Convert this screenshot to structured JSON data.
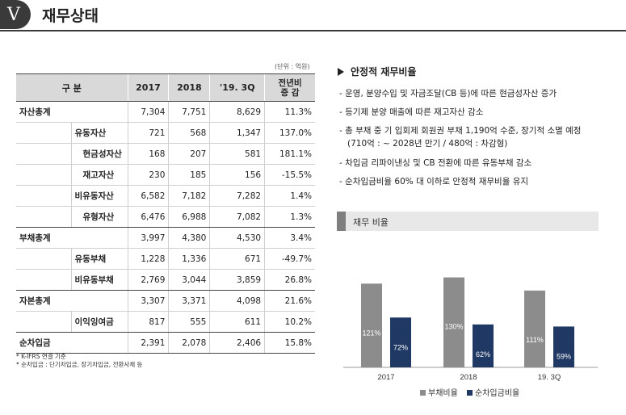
{
  "header": {
    "badge": "V",
    "title": "재무상태"
  },
  "table": {
    "unit": "(단위 : 억원)",
    "headers": [
      "구  분",
      "2017",
      "2018",
      "'19. 3Q",
      "전년비\n증  감"
    ],
    "rows": [
      {
        "level": 0,
        "label": "자산총계",
        "v": [
          "7,304",
          "7,751",
          "8,629",
          "11.3%"
        ]
      },
      {
        "level": 1,
        "label": "유동자산",
        "v": [
          "721",
          "568",
          "1,347",
          "137.0%"
        ]
      },
      {
        "level": 2,
        "label": "현금성자산",
        "v": [
          "168",
          "207",
          "581",
          "181.1%"
        ]
      },
      {
        "level": 2,
        "label": "재고자산",
        "v": [
          "230",
          "185",
          "156",
          "-15.5%"
        ]
      },
      {
        "level": 1,
        "label": "비유동자산",
        "v": [
          "6,582",
          "7,182",
          "7,282",
          "1.4%"
        ]
      },
      {
        "level": 2,
        "label": "유형자산",
        "v": [
          "6,476",
          "6,988",
          "7,082",
          "1.3%"
        ]
      },
      {
        "level": 0,
        "label": "부채총계",
        "v": [
          "3,997",
          "4,380",
          "4,530",
          "3.4%"
        ]
      },
      {
        "level": 1,
        "label": "유동부채",
        "v": [
          "1,228",
          "1,336",
          "671",
          "-49.7%"
        ]
      },
      {
        "level": 1,
        "label": "비유동부채",
        "v": [
          "2,769",
          "3,044",
          "3,859",
          "26.8%"
        ]
      },
      {
        "level": 0,
        "label": "자본총계",
        "v": [
          "3,307",
          "3,371",
          "4,098",
          "21.6%"
        ]
      },
      {
        "level": 1,
        "label": "이익잉여금",
        "v": [
          "817",
          "555",
          "611",
          "10.2%"
        ]
      },
      {
        "level": 0,
        "label": "순차입금",
        "v": [
          "2,391",
          "2,078",
          "2,406",
          "15.8%"
        ]
      }
    ],
    "notes": [
      "* K-IFRS 연결 기준",
      "* 순차입금 : 단기차입금, 장기차입금, 전환사채 등"
    ]
  },
  "section": {
    "title": "안정적 재무비율",
    "bullets": [
      "- 운영, 분양수입 및 자금조달(CB 등)에 따른 현금성자산 증가",
      "- 등기제 분양 매출에 따른 재고자산 감소",
      "- 총 부채 중 기 입회제 회원권 부채 1,190억 수준, 장기적 소멸 예정",
      "(710억 : ~ 2028년 만기 / 480억 : 차감형)",
      "- 차입금 리파이낸싱 및 CB 전환에 따른 유동부채 감소",
      "- 순차입금비율 60% 대 이하로 안정적 재무비율 유지"
    ]
  },
  "chart_header": "재무 비율",
  "chart_data": {
    "type": "bar",
    "categories": [
      "2017",
      "2018",
      "19. 3Q"
    ],
    "series": [
      {
        "name": "부채비율",
        "values": [
          121,
          130,
          111
        ],
        "labels": [
          "121%",
          "130%",
          "111%"
        ],
        "color": "#8c8c8c"
      },
      {
        "name": "순차입금비율",
        "values": [
          72,
          62,
          59
        ],
        "labels": [
          "72%",
          "62%",
          "59%"
        ],
        "color": "#1f3864"
      }
    ],
    "legend_placement": "bottom"
  }
}
